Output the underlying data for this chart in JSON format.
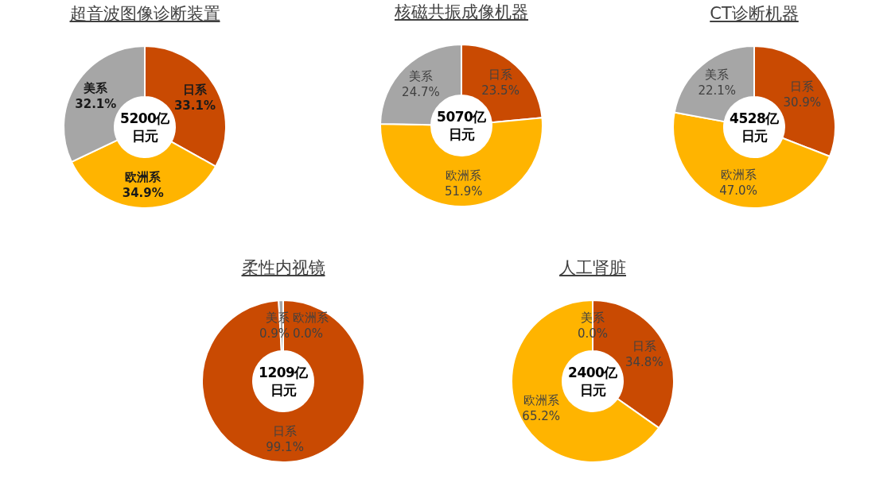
{
  "chart_data": [
    {
      "type": "donut",
      "title": "超音波图像诊断装置",
      "categories": [
        "日系",
        "欧洲系",
        "美系"
      ],
      "values": [
        33.1,
        34.9,
        32.1
      ],
      "value_labels": [
        "33.1%",
        "34.9%",
        "32.1%"
      ],
      "colors": [
        "#c94a02",
        "#ffb400",
        "#a6a6a6"
      ],
      "annotations": [
        "5200亿日元"
      ],
      "legend": false
    },
    {
      "type": "donut",
      "title": "核磁共振成像机器",
      "categories": [
        "日系",
        "欧洲系",
        "美系"
      ],
      "values": [
        23.5,
        51.9,
        24.7
      ],
      "value_labels": [
        "23.5%",
        "51.9%",
        "24.7%"
      ],
      "colors": [
        "#c94a02",
        "#ffb400",
        "#a6a6a6"
      ],
      "annotations": [
        "5070亿日元"
      ],
      "legend": false
    },
    {
      "type": "donut",
      "title": "CT诊断机器",
      "categories": [
        "日系",
        "欧洲系",
        "美系"
      ],
      "values": [
        30.9,
        47.0,
        22.1
      ],
      "value_labels": [
        "30.9%",
        "47.0%",
        "22.1%"
      ],
      "colors": [
        "#c94a02",
        "#ffb400",
        "#a6a6a6"
      ],
      "annotations": [
        "4528亿日元"
      ],
      "legend": false
    },
    {
      "type": "donut",
      "title": "柔性内视镜",
      "categories": [
        "欧洲系",
        "日系",
        "美系"
      ],
      "values": [
        0.0,
        99.1,
        0.9
      ],
      "value_labels": [
        "0.0%",
        "99.1%",
        "0.9%"
      ],
      "colors": [
        "#ffb400",
        "#c94a02",
        "#a6a6a6"
      ],
      "annotations": [
        "1209亿日元"
      ],
      "legend": false
    },
    {
      "type": "donut",
      "title": "人工肾脏",
      "categories": [
        "日系",
        "欧洲系",
        "美系"
      ],
      "values": [
        34.8,
        65.2,
        0.0
      ],
      "value_labels": [
        "34.8%",
        "65.2%",
        "0.0%"
      ],
      "colors": [
        "#c94a02",
        "#ffb400",
        "#a6a6a6"
      ],
      "annotations": [
        "2400亿日元"
      ],
      "legend": false
    }
  ]
}
